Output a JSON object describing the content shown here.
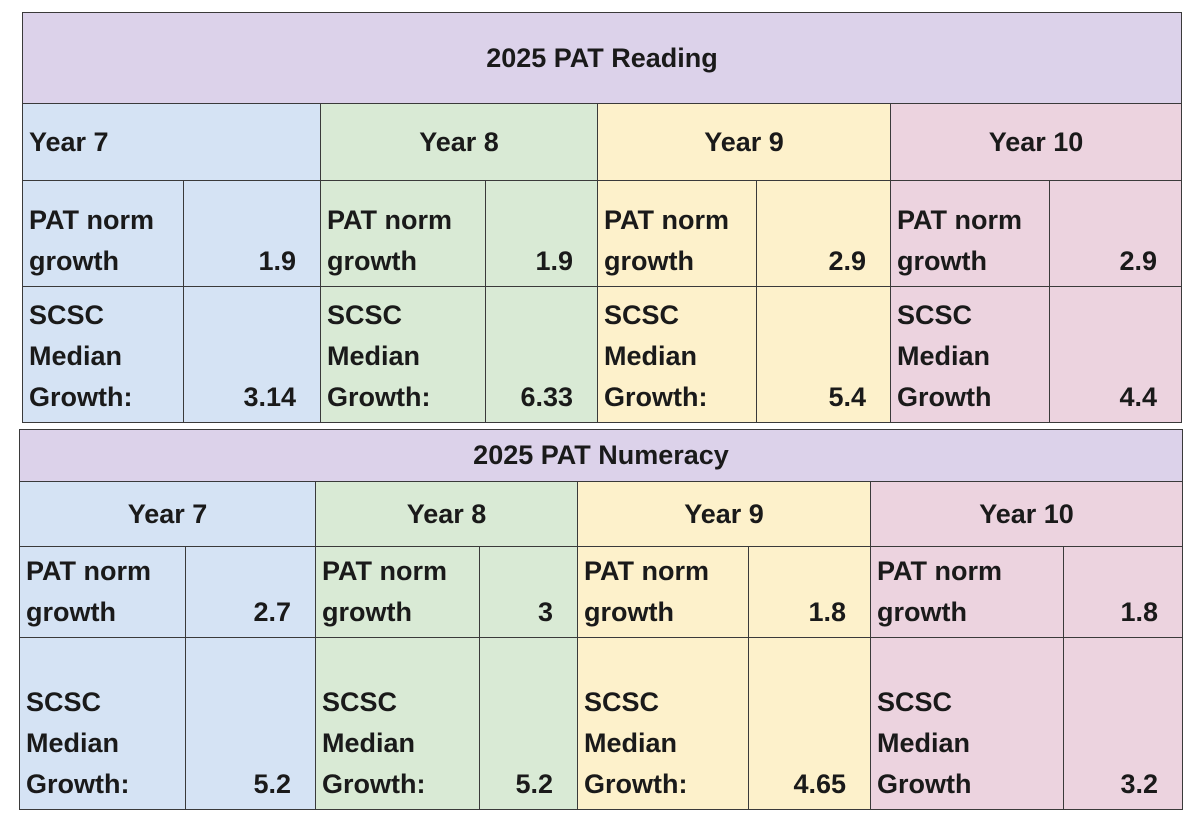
{
  "reading": {
    "title": "2025 PAT Reading",
    "years": [
      {
        "label": "Year 7",
        "norm_label": "PAT norm\ngrowth",
        "norm_value": "1.9",
        "median_label": "SCSC\nMedian\nGrowth:",
        "median_value": "3.14",
        "color": "#d5e3f4"
      },
      {
        "label": "Year 8",
        "norm_label": "PAT norm\ngrowth",
        "norm_value": "1.9",
        "median_label": "SCSC\nMedian\nGrowth:",
        "median_value": "6.33",
        "color": "#d9ead5"
      },
      {
        "label": "Year 9",
        "norm_label": "PAT norm\ngrowth",
        "norm_value": "2.9",
        "median_label": "SCSC\nMedian\nGrowth:",
        "median_value": "5.4",
        "color": "#fdf1cb"
      },
      {
        "label": "Year 10",
        "norm_label": "PAT norm\ngrowth",
        "norm_value": "2.9",
        "median_label": "SCSC\nMedian\nGrowth",
        "median_value": "4.4",
        "color": "#ecd3df"
      }
    ]
  },
  "numeracy": {
    "title": "2025 PAT Numeracy",
    "years": [
      {
        "label": "Year 7",
        "norm_label": "PAT norm\ngrowth",
        "norm_value": "2.7",
        "median_label": "SCSC\nMedian\nGrowth:",
        "median_value": "5.2",
        "color": "#d5e3f4"
      },
      {
        "label": "Year 8",
        "norm_label": "PAT norm\ngrowth",
        "norm_value": "3",
        "median_label": "SCSC\nMedian\nGrowth:",
        "median_value": "5.2",
        "color": "#d9ead5"
      },
      {
        "label": "Year 9",
        "norm_label": "PAT norm\ngrowth",
        "norm_value": "1.8",
        "median_label": "SCSC\nMedian\nGrowth:",
        "median_value": "4.65",
        "color": "#fdf1cb"
      },
      {
        "label": "Year 10",
        "norm_label": "PAT norm\ngrowth",
        "norm_value": "1.8",
        "median_label": "SCSC\nMedian\nGrowth",
        "median_value": "3.2",
        "color": "#ecd3df"
      }
    ]
  }
}
